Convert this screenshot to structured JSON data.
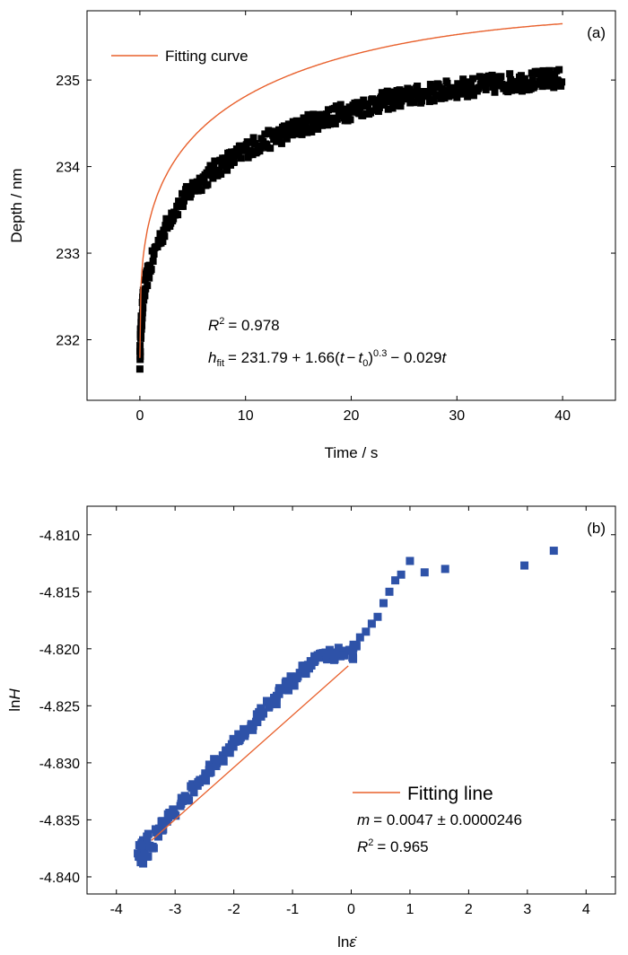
{
  "chart_data": [
    {
      "type": "scatter",
      "panel_label": "(a)",
      "xlabel": "Time / s",
      "ylabel": "Depth / nm",
      "xlim": [
        -5,
        45
      ],
      "ylim": [
        231.3,
        235.8
      ],
      "xticks": [
        0,
        10,
        20,
        30,
        40
      ],
      "yticks": [
        232,
        233,
        234,
        235
      ],
      "grid": false,
      "legend": {
        "placement": "top-left",
        "entries": [
          "Fitting curve"
        ]
      },
      "annotations": [
        "= 0.978",
        "= 231.79 + 1.66(",
        "−",
        ")",
        "0.3",
        "− 0.029"
      ],
      "fit": {
        "a": 231.79,
        "b": 1.66,
        "n": 0.3,
        "c": -0.029,
        "t0": 0.0,
        "t_range": [
          0,
          40
        ]
      },
      "series": [
        {
          "marker": "square",
          "color": "#000000",
          "x": [
            0,
            0.05,
            0.1,
            0.2,
            0.3,
            0.5,
            0.75,
            1,
            1.5,
            2,
            2.5,
            3,
            4,
            5,
            6,
            7,
            8,
            9,
            10,
            12,
            14,
            16,
            18,
            20,
            22,
            24,
            26,
            28,
            30,
            32,
            34,
            36,
            38,
            40
          ],
          "y": [
            231.75,
            232.0,
            232.1,
            232.3,
            232.45,
            232.6,
            232.75,
            232.85,
            233.05,
            233.2,
            233.3,
            233.45,
            233.6,
            233.75,
            233.85,
            233.95,
            234.05,
            234.1,
            234.2,
            234.3,
            234.4,
            234.5,
            234.58,
            234.65,
            234.72,
            234.78,
            234.82,
            234.86,
            234.9,
            234.93,
            234.96,
            234.98,
            235.0,
            235.02
          ]
        },
        {
          "name": "Fitting curve",
          "type": "line",
          "color": "#e8602c"
        }
      ]
    },
    {
      "type": "scatter",
      "panel_label": "(b)",
      "xlabel": "ln",
      "ylabel": "ln",
      "xlim": [
        -4.5,
        4.5
      ],
      "ylim": [
        -4.8415,
        -4.8075
      ],
      "xticks": [
        -4,
        -3,
        -2,
        -1,
        0,
        1,
        2,
        3,
        4
      ],
      "yticks": [
        -4.84,
        -4.835,
        -4.83,
        -4.825,
        -4.82,
        -4.815,
        -4.81
      ],
      "ytick_labels": [
        "-4.840",
        "-4.835",
        "-4.830",
        "-4.825",
        "-4.820",
        "-4.815",
        "-4.810"
      ],
      "grid": false,
      "legend": {
        "placement": "lower-right",
        "entries": [
          "Fitting line"
        ]
      },
      "annotations": [
        "= 0.0047 ± 0.0000246",
        "= 0.965"
      ],
      "fit": {
        "x": [
          -3.4,
          -0.05
        ],
        "y": [
          -4.8368,
          -4.8215
        ]
      },
      "series": [
        {
          "marker": "square",
          "color": "#2e52a8",
          "x": [
            -3.6,
            -3.58,
            -3.55,
            -3.5,
            -3.45,
            -3.4,
            -3.3,
            -3.2,
            -3.1,
            -3.0,
            -2.9,
            -2.8,
            -2.7,
            -2.6,
            -2.5,
            -2.4,
            -2.3,
            -2.2,
            -2.1,
            -2.0,
            -1.9,
            -1.8,
            -1.7,
            -1.6,
            -1.5,
            -1.4,
            -1.3,
            -1.2,
            -1.1,
            -1.0,
            -0.9,
            -0.8,
            -0.7,
            -0.6,
            -0.5,
            -0.4,
            -0.3,
            -0.2,
            -0.1,
            0.0,
            0.05,
            0.15,
            0.25,
            0.35,
            0.45,
            0.55,
            0.65,
            0.75,
            0.85,
            1.0,
            1.25,
            1.6,
            2.95,
            3.45
          ],
          "y": [
            -4.8375,
            -4.8385,
            -4.837,
            -4.838,
            -4.8365,
            -4.8372,
            -4.8362,
            -4.8355,
            -4.8348,
            -4.8342,
            -4.8335,
            -4.833,
            -4.8323,
            -4.8318,
            -4.8312,
            -4.8305,
            -4.83,
            -4.8295,
            -4.8288,
            -4.8283,
            -4.8278,
            -4.8272,
            -4.8267,
            -4.826,
            -4.8255,
            -4.825,
            -4.8245,
            -4.8238,
            -4.8233,
            -4.8228,
            -4.8223,
            -4.8218,
            -4.8213,
            -4.821,
            -4.8208,
            -4.8205,
            -4.8207,
            -4.8203,
            -4.8206,
            -4.8205,
            -4.82,
            -4.819,
            -4.8185,
            -4.8178,
            -4.8172,
            -4.816,
            -4.815,
            -4.814,
            -4.8135,
            -4.8123,
            -4.8133,
            -4.813,
            -4.8127,
            -4.8114
          ]
        },
        {
          "name": "Fitting line",
          "type": "line",
          "color": "#e8602c"
        }
      ]
    }
  ]
}
